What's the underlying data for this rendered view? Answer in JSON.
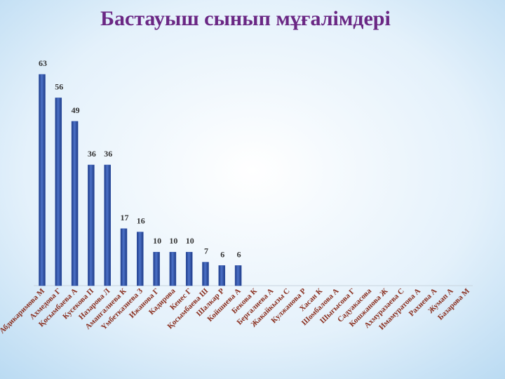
{
  "chart_data": {
    "type": "bar",
    "title": "Бастауыш сынып мұғалімдері",
    "categories": [
      "Абдикаримова М",
      "Ахмедова Г",
      "Қосымбаева А",
      "Кусекова П",
      "Назарова Л",
      "Амангалиева К",
      "Үмбетказиева З",
      "Ижанова Г",
      "Кадирова",
      "Кенес Г",
      "Қосымбаева Ш",
      "Шалкар Р",
      "Койшиева А",
      "Бекова К",
      "Бергалиева А",
      "Жакайкызы С",
      "Кулжанова Р",
      "Хасан К",
      "Шомбалова А",
      "Шыгысова Г",
      "Садуакасова",
      "Кошжанова Ж",
      "Ахмуразаева С",
      "Имамуратова А",
      "Рахиева А",
      "Жумап А",
      "Базарова М"
    ],
    "values": [
      63,
      56,
      49,
      36,
      36,
      17,
      16,
      10,
      10,
      10,
      7,
      6,
      6,
      0,
      0,
      0,
      0,
      0,
      0,
      0,
      0,
      0,
      0,
      0,
      0,
      0,
      0
    ],
    "color": "#2b4ea6"
  }
}
